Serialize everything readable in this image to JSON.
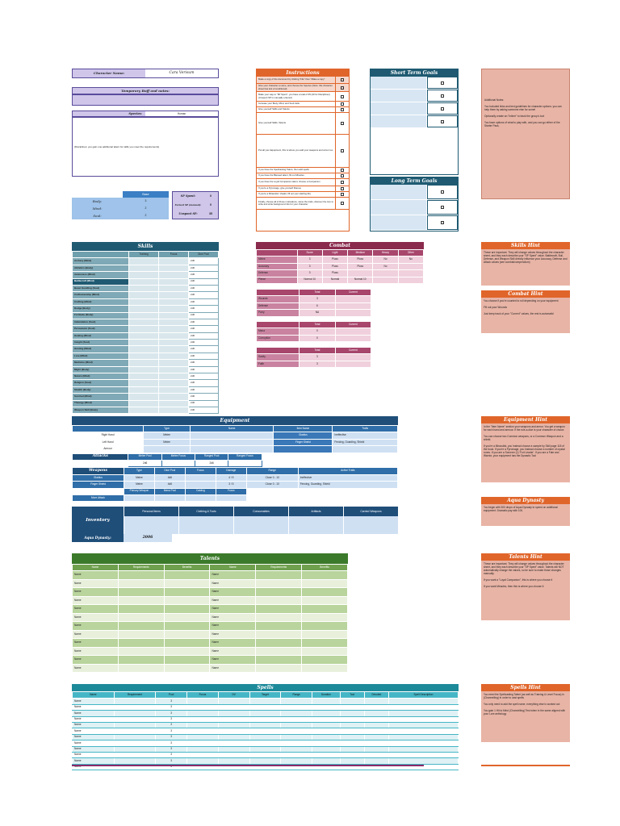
{
  "character": {
    "name_label": "Character Name:",
    "name_value": "Cara Verisum",
    "temp_label": "Temporary Buff and notes:",
    "species_label": "Species:",
    "species_value": "Human",
    "species_note": "(Disciplines: you gain one additional talent for skills you meet the requirements)"
  },
  "stats": {
    "head": "Base",
    "rows": [
      {
        "label": "Body:",
        "val": "3"
      },
      {
        "label": "Mind:",
        "val": "2"
      },
      {
        "label": "Soul:",
        "val": "2"
      }
    ],
    "sp": [
      {
        "label": "SP Spent:",
        "val": "0"
      },
      {
        "label": "Earned SP (manual):",
        "val": "0"
      },
      {
        "label": "Unspent SP:",
        "val": "35"
      }
    ]
  },
  "instructions": {
    "title": "Instructions",
    "items": [
      "Make a copy of the document by clicking \"File\" then \"Make a copy\"",
      "Give your character a name, and choose the Species (Note: this character sheet has lots of conditional)",
      "Make your way to \"SP Spent\", you have a total of 35 (40 for Disciplines) (Unspent SP is manually entered)",
      "Increase your Body, Mind, and Soul traits",
      "Give yourself Skills and Talents",
      "Give yourself Skills, Talents",
      "Put all your Equipment, this is where you add your weapons and armor too",
      "If you have the Spellcasting Talent, then add spells",
      "If you have the Blessed talent, fill out Miracles",
      "If you have the Loyal Companion talent, choose a Companion",
      "If you're a Pyromage, give yourself Flames",
      "If you're a Miraculist / Zealot, fill out your starting Abj",
      "Finally, choose all of those motivations, name the traits, discover the lore to write and write background info for your character"
    ]
  },
  "short_goals": {
    "title": "Short Term Goals",
    "n": 4
  },
  "long_goals": {
    "title": "Long Term Goals",
    "n": 3
  },
  "notes_pink": {
    "title": "Additional Notes:",
    "lines": [
      "You included links and text guidelines for character options: you can help them by asking someone else for some!",
      "Optionally create an \"Inliner\" to track the group's loot",
      "You have options of what to play with, and you can go either of the Starter Pack,"
    ]
  },
  "skills": {
    "title": "Skills",
    "cols": [
      "",
      "Training",
      "Focus",
      "Dice Pool"
    ],
    "rows": [
      "Archery (Mind)",
      "Athletics (Body)",
      "Awareness (Mind)",
      "Battlecraft (Mind)",
      "Beast Handling (Soul)",
      "Craftsmanship (Mind)",
      "Crafting (Mind)",
      "Dodge (Body)",
      "Fortitude (Body)",
      "Intimidation (Soul)",
      "Persuasion (Soul)",
      "Healing (Mind)",
      "Insight (Soul)",
      "Hunting (Mind)",
      "Lore (Mind)",
      "Medicine (Mind)",
      "Might (Body)",
      "Nature (Mind)",
      "Religion (Soul)",
      "Stealth (Body)",
      "Survival (Mind)",
      "Theurgy (Mind)",
      "Weapon Skill (Body)"
    ],
    "pool": "2d6"
  },
  "skills_hint": {
    "title": "Skills Hint",
    "text": "These are important. They will change values throughout the character sheet, and they each describe your \"SP Spent\" value. Battlecraft, Bull, Defense, and Weapon Skill directly influence your Accuracy, Defense and Attack values (see combat/compendium)"
  },
  "combat": {
    "title": "Combat",
    "cols": [
      "",
      "Score",
      "Light",
      "Medium",
      "Heavy",
      "Other"
    ],
    "rows": [
      {
        "c": [
          "Melee",
          "3",
          "Pluss",
          "Pluss",
          "No",
          "No"
        ]
      },
      {
        "c": [
          "Accuracy",
          "3",
          "Pluss",
          "Pluss",
          "No",
          ""
        ]
      },
      {
        "c": [
          "Defense",
          "3",
          "Pluss",
          "",
          "",
          ""
        ]
      },
      {
        "c": [
          "Pierce",
          "Normal 10",
          "Normal",
          "Normal 10",
          "",
          ""
        ]
      }
    ]
  },
  "hp": {
    "cols": [
      "",
      "Total",
      "Current"
    ],
    "rows": [
      [
        "Wounds",
        "3",
        ""
      ],
      [
        "Defense",
        "6",
        ""
      ],
      [
        "Parry",
        "NA",
        ""
      ]
    ]
  },
  "mp": {
    "cols": [
      "",
      "Total",
      "Current"
    ],
    "rows": [
      [
        "Mana",
        "0",
        ""
      ],
      [
        "Corruption",
        "0",
        ""
      ]
    ]
  },
  "san": {
    "cols": [
      "",
      "Total",
      "Current"
    ],
    "rows": [
      [
        "Sanity",
        "3",
        ""
      ],
      [
        "Faith",
        "3",
        ""
      ]
    ]
  },
  "combat_hint": {
    "title": "Combat Hint",
    "lines": [
      "You choose if you're counted to roll depending on your equipment",
      "Fill out your Wounds",
      "Just keep track of your \"Current\" values, the rest is automatic!"
    ]
  },
  "equipment": {
    "title": "Equipment",
    "head": [
      "",
      "Type",
      "Name",
      "Item Name",
      "Traits"
    ],
    "rows": [
      [
        "Right Hand",
        "Melee",
        "",
        "Gladius",
        "Ineffective"
      ],
      [
        "Left Hand",
        "Melee",
        "",
        "Finger Shield",
        "Fencing, Guarding, Shield"
      ],
      [
        "Armour",
        "",
        "",
        "",
        ""
      ]
    ],
    "attacks_label": "Attacks",
    "atk_cols": [
      "Melee Pool",
      "Melee Focus",
      "Ranged Pool",
      "Ranged Focus"
    ],
    "atk_vals": [
      "2d6",
      "",
      "2d6",
      ""
    ],
    "weapons_label": "Weapons",
    "wcols": [
      "",
      "Type",
      "Dice Pool",
      "Focus",
      "Damage",
      "Range",
      "Active Traits"
    ],
    "wrows": [
      [
        "Gladius",
        "Melee",
        "4d6",
        "",
        "4 / 5",
        "Close 0 - 10",
        "Ineffective"
      ],
      [
        "Finger Shield",
        "Melee",
        "4d6",
        "",
        "3 / 5",
        "Close 0 - 10",
        "Fencing, Guarding, Shield"
      ]
    ],
    "mdeck": [
      "Primary Weapon",
      "Mana Pool",
      "Casting",
      "Focus"
    ],
    "more_attack": "More Attack",
    "inv_label": "Inventory",
    "inv_cols": [
      "Personal Items",
      "Clothing & Tools",
      "Consumables",
      "Artifacts",
      "Carried Weapons"
    ],
    "coin_label": "Aqua Dynasty:",
    "coin_value": "2006"
  },
  "equip_hint": {
    "title": "Equipment Hint",
    "lines": [
      "In the \"Item Name\" section your weapons and armor. You get a weapon for each hand and armour. If the rule-a-dice is your character of choice.",
      "You can choose two Common weapons, or a Common Weapon and a shield.",
      "If you're a Miraculist, you Instead choose a sample by Skill page 118 of the book. If you're a Pyromage, you Instead choose a number of crystal runes. If you are a Sorcerer (1) 'Fort Leader'. If you are a Fate and Warrior, your equipment has the Dynastic Tool"
    ]
  },
  "coin_hint": {
    "title": "Aqua Dynasty",
    "text": "You begin with 300 drops of Aqua Dynasty to spend on additional equipment. Dramatic pay with 100."
  },
  "talents": {
    "title": "Talents",
    "cols": [
      "Name",
      "Requirements",
      "Benefits",
      "Name",
      "Requirements",
      "Benefits"
    ],
    "n": 12,
    "cell": "Name"
  },
  "talents_hint": {
    "title": "Talents Hint",
    "lines": [
      "These are important. They will change values throughout the character sheet, and they each describe your \"SP Spent\" value. Talents will NOT automatically change the values, so be sure to make those changes manually.",
      "If you want a \"Loyal Companion\", this is where you choose it",
      "If you want Miracles, then this is where you choose it"
    ]
  },
  "spells": {
    "title": "Spells",
    "cols": [
      "Name",
      "Requirement",
      "Pool",
      "Focus",
      "DV",
      "Target",
      "Range",
      "Duration",
      "Tool",
      "Devoted",
      "Spell Description"
    ],
    "n": 12,
    "cell": "Name",
    "pool": "3"
  },
  "spells_hint": {
    "title": "Spells Hint",
    "lines": [
      "You need the Spellcasting Talent (as well as Training & Level Focus) in (Channelling) in order to cast spells",
      "You only need to add the spell name, everything else is worked out",
      "You gain 1 Hit to Mind (Channelling) Test when in the same aligned with your Lore anthology"
    ]
  },
  "colors": {
    "orange": "#e0652a",
    "pink": "#e8b4a6",
    "navy": "#1f5a72",
    "green": "#3b7a2a",
    "maroon": "#8a2a4c",
    "blue": "#1e5a9a",
    "purple": "#3a2e6e",
    "teal": "#2ea3b3"
  }
}
